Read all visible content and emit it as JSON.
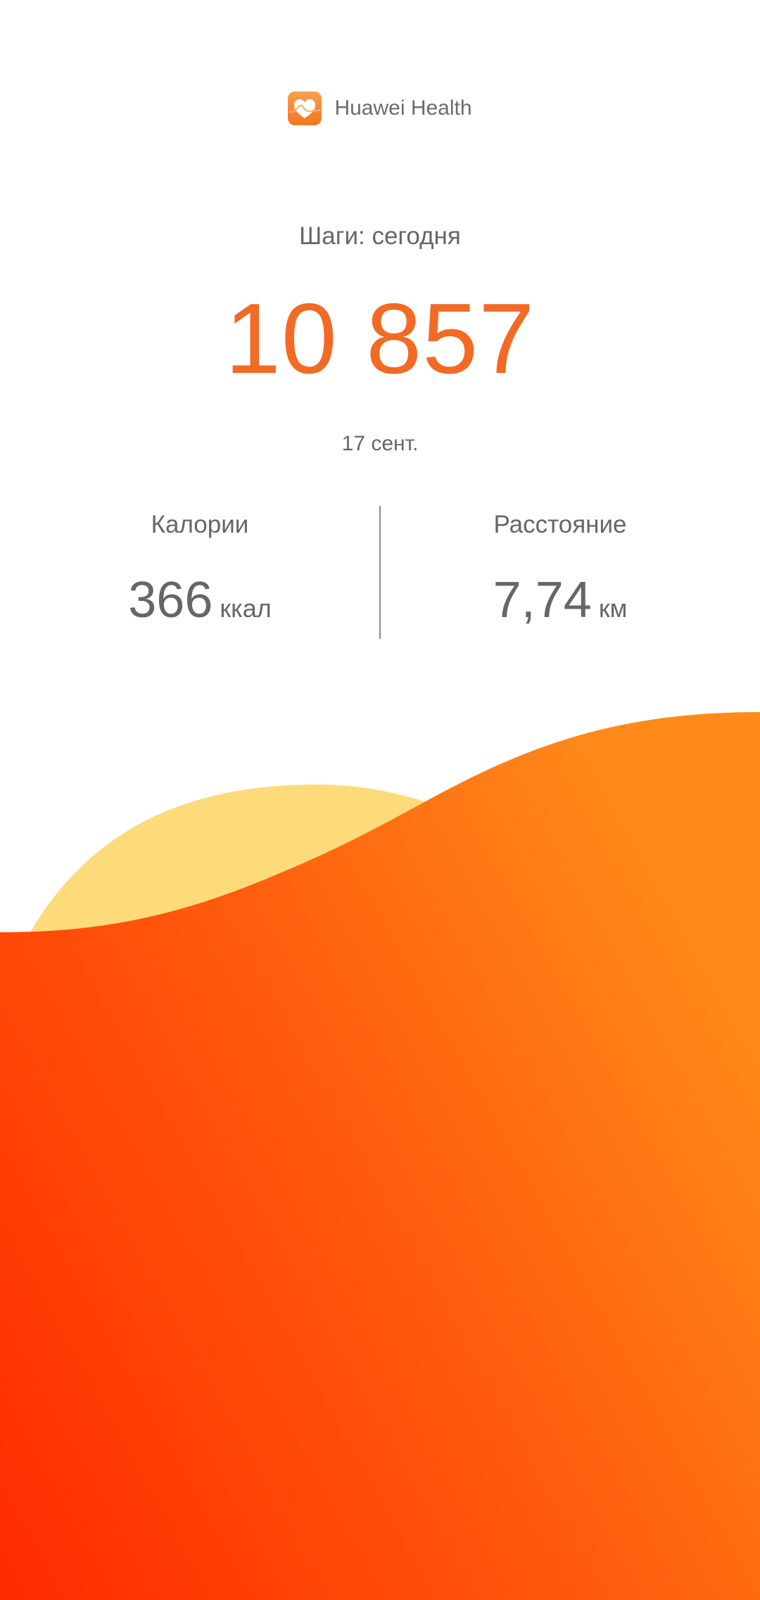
{
  "app": {
    "name": "Huawei Health",
    "icon": "heart-pulse-icon",
    "icon_color": "#F5822A"
  },
  "summary": {
    "title": "Шаги: сегодня",
    "steps": "10 857",
    "date": "17 сент.",
    "accent": "#F26A24"
  },
  "stats": [
    {
      "label": "Калории",
      "value": "366",
      "unit": "ккал"
    },
    {
      "label": "Расстояние",
      "value": "7,74",
      "unit": "км"
    }
  ],
  "decoration": {
    "wave_colors": [
      "#FF2A00",
      "#FF8A1A"
    ],
    "hill_color": "#FDDB7B"
  }
}
